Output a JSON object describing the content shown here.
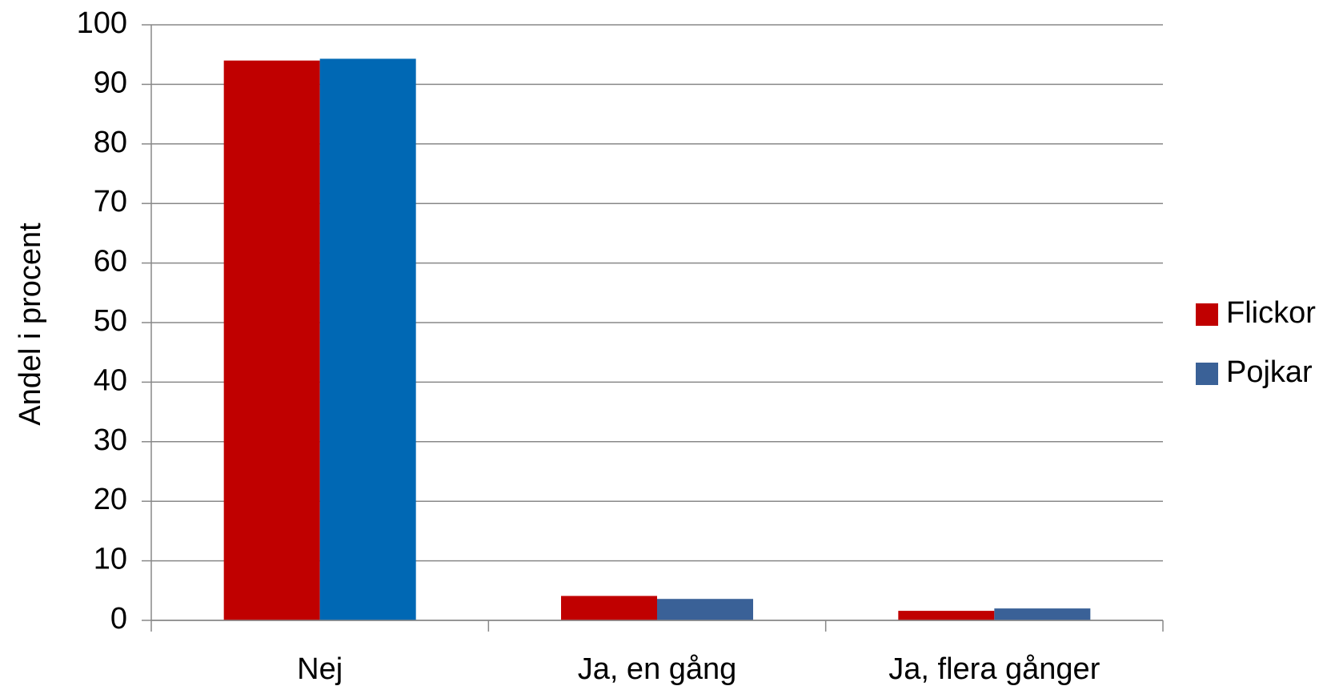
{
  "chart_data": {
    "type": "bar",
    "y_label": "Andel i procent",
    "categories": [
      "Nej",
      "Ja, en gång",
      "Ja, flera gånger"
    ],
    "series": [
      {
        "name": "Flickor",
        "color": "#c00000",
        "values": [
          94.0,
          4.1,
          1.6
        ]
      },
      {
        "name": "Pojkar",
        "color": "#3a6197",
        "colors": [
          "#0068b4",
          "#3a6197",
          "#3a6197"
        ],
        "values": [
          94.3,
          3.6,
          2.0
        ]
      }
    ],
    "ylim": [
      0,
      100
    ],
    "yticks": [
      0,
      10,
      20,
      30,
      40,
      50,
      60,
      70,
      80,
      90,
      100
    ],
    "grid": true,
    "legend": "right"
  }
}
